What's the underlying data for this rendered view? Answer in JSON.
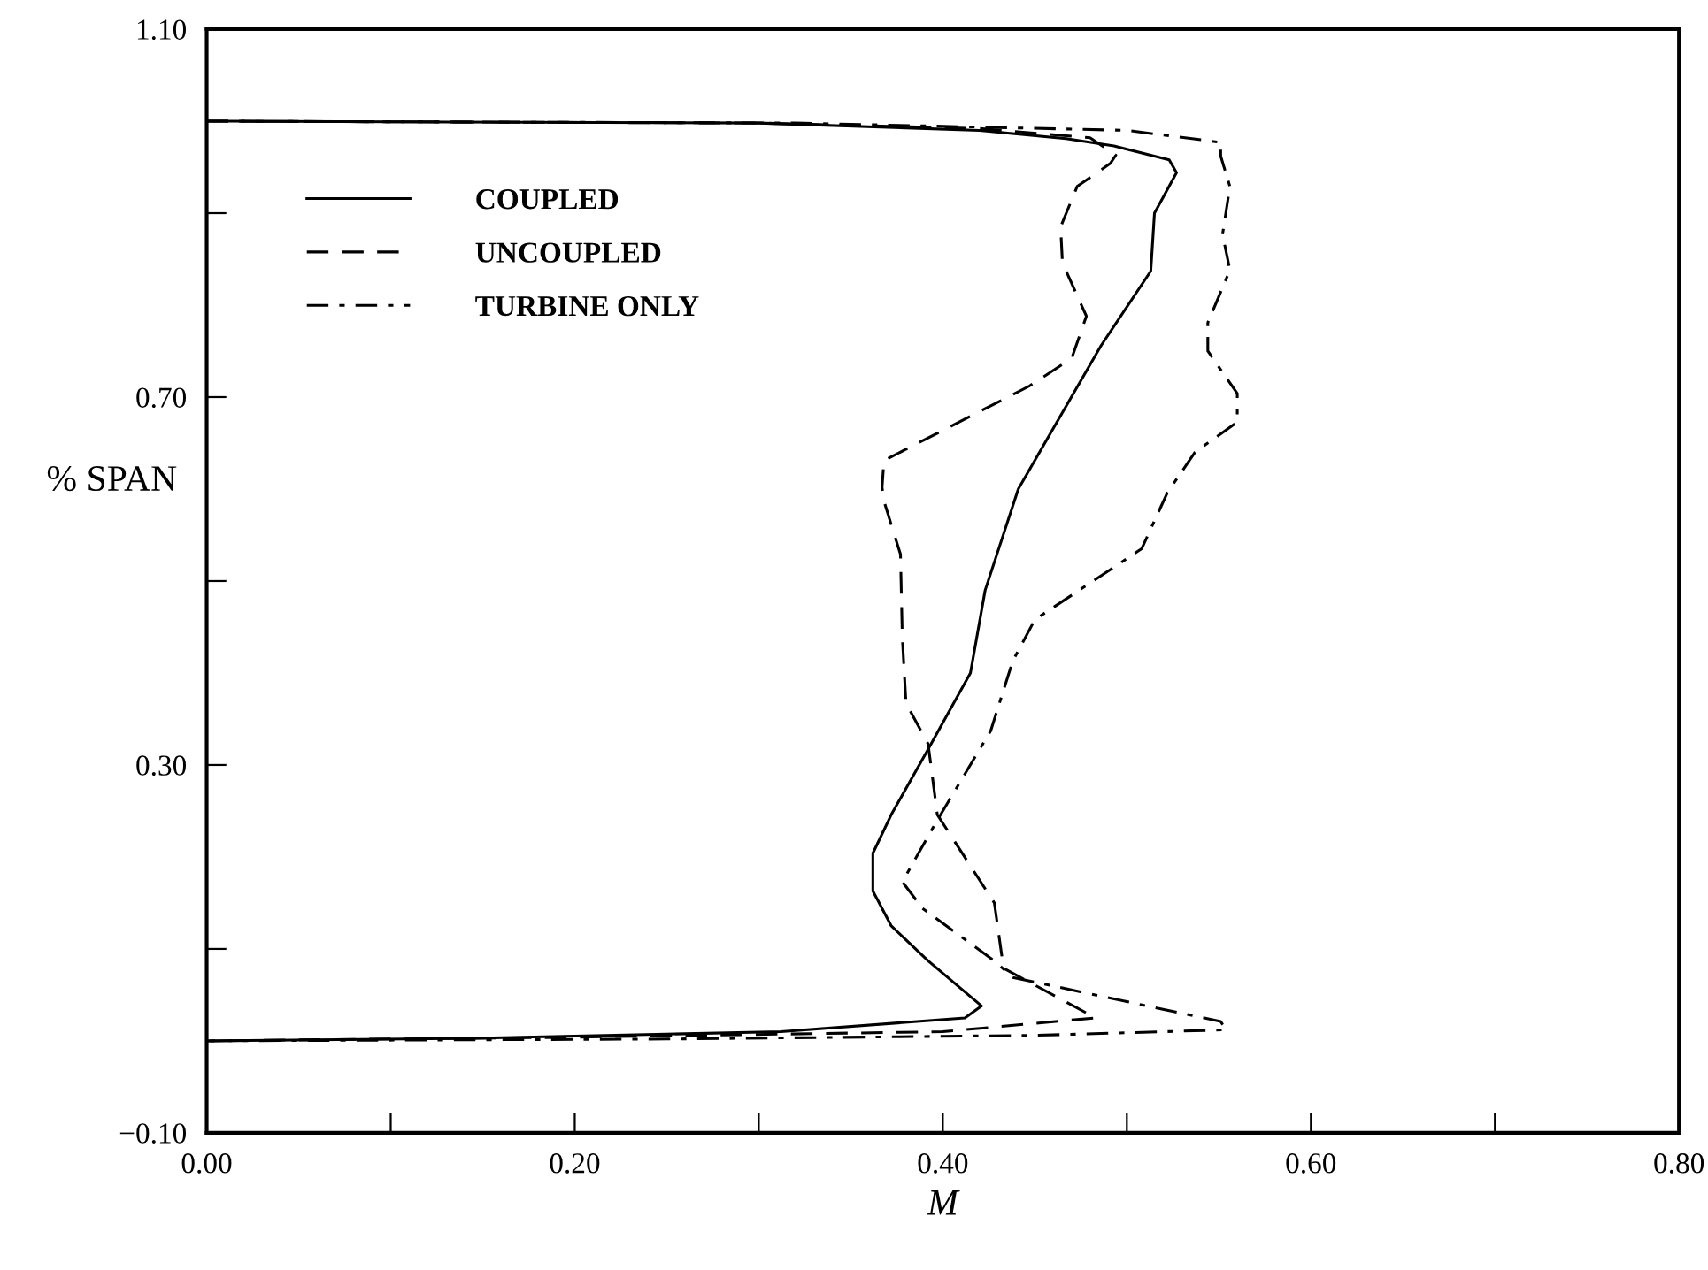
{
  "chart_data": {
    "type": "line",
    "xlabel": "M",
    "ylabel": "% SPAN",
    "xlim": [
      0.0,
      0.8
    ],
    "ylim": [
      -0.1,
      1.1
    ],
    "xticks": [
      {
        "value": 0.0,
        "label": "0.00"
      },
      {
        "value": 0.1,
        "label": null
      },
      {
        "value": 0.2,
        "label": "0.20"
      },
      {
        "value": 0.3,
        "label": null
      },
      {
        "value": 0.4,
        "label": "0.40"
      },
      {
        "value": 0.5,
        "label": null
      },
      {
        "value": 0.6,
        "label": "0.60"
      },
      {
        "value": 0.7,
        "label": null
      },
      {
        "value": 0.8,
        "label": "0.80"
      }
    ],
    "yticks": [
      {
        "value": -0.1,
        "label": "−0.10"
      },
      {
        "value": 0.1,
        "label": null
      },
      {
        "value": 0.3,
        "label": "0.30"
      },
      {
        "value": 0.5,
        "label": null
      },
      {
        "value": 0.7,
        "label": "0.70"
      },
      {
        "value": 0.9,
        "label": null
      },
      {
        "value": 1.1,
        "label": "1.10"
      }
    ],
    "grid": false,
    "legend": "top left",
    "marker": "none",
    "series": [
      {
        "name": "COUPLED",
        "color": "#000000",
        "line_style": "solid",
        "x": [
          0.0,
          0.3,
          0.42,
          0.467,
          0.493,
          0.523,
          0.527,
          0.515,
          0.513,
          0.486,
          0.441,
          0.423,
          0.415,
          0.392,
          0.372,
          0.362,
          0.362,
          0.372,
          0.392,
          0.421,
          0.412,
          0.312,
          0.15,
          0.0
        ],
        "values": [
          1.0,
          0.998,
          0.99,
          0.981,
          0.973,
          0.958,
          0.944,
          0.9,
          0.837,
          0.756,
          0.6,
          0.49,
          0.4,
          0.317,
          0.246,
          0.204,
          0.163,
          0.125,
          0.087,
          0.038,
          0.025,
          0.01,
          0.003,
          0.0
        ]
      },
      {
        "name": "UNCOUPLED",
        "color": "#000000",
        "line_style": "dashed",
        "x": [
          0.0,
          0.3,
          0.42,
          0.48,
          0.494,
          0.491,
          0.473,
          0.464,
          0.465,
          0.478,
          0.47,
          0.447,
          0.368,
          0.367,
          0.368,
          0.377,
          0.378,
          0.38,
          0.392,
          0.397,
          0.428,
          0.433,
          0.483,
          0.4,
          0.2,
          0.0
        ],
        "values": [
          1.0,
          0.998,
          0.992,
          0.982,
          0.963,
          0.954,
          0.929,
          0.885,
          0.846,
          0.788,
          0.742,
          0.712,
          0.631,
          0.602,
          0.587,
          0.529,
          0.438,
          0.367,
          0.323,
          0.246,
          0.15,
          0.079,
          0.025,
          0.01,
          0.004,
          0.0
        ]
      },
      {
        "name": "TURBINE ONLY",
        "color": "#000000",
        "line_style": "dashdot",
        "x": [
          0.0,
          0.32,
          0.5,
          0.551,
          0.551,
          0.556,
          0.552,
          0.556,
          0.544,
          0.544,
          0.56,
          0.56,
          0.537,
          0.522,
          0.508,
          0.45,
          0.438,
          0.426,
          0.397,
          0.378,
          0.389,
          0.428,
          0.438,
          0.551,
          0.554,
          0.45,
          0.25,
          0.0
        ],
        "values": [
          1.0,
          0.998,
          0.99,
          0.977,
          0.962,
          0.929,
          0.877,
          0.838,
          0.781,
          0.75,
          0.704,
          0.673,
          0.64,
          0.596,
          0.535,
          0.458,
          0.413,
          0.337,
          0.24,
          0.173,
          0.144,
          0.087,
          0.069,
          0.021,
          0.012,
          0.006,
          0.002,
          0.0
        ]
      }
    ]
  }
}
